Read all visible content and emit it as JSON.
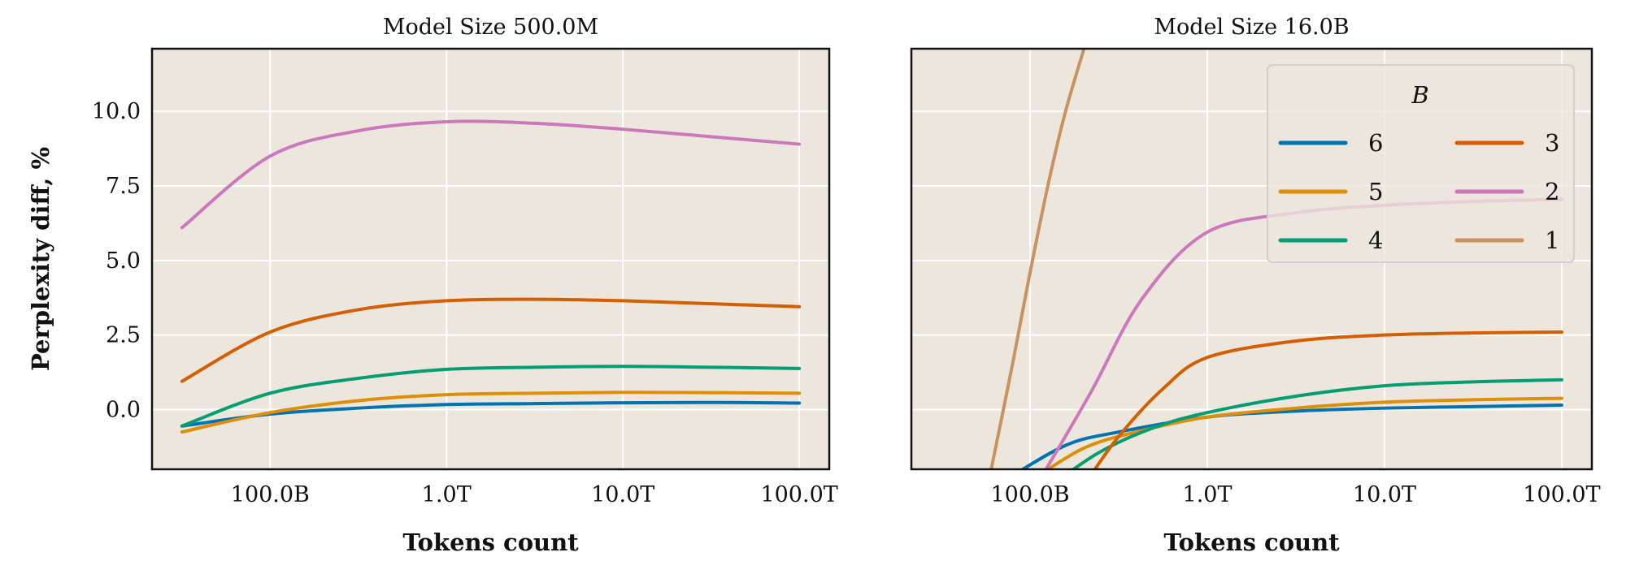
{
  "chart_data": [
    {
      "type": "line",
      "title": "Model Size 500.0M",
      "xlabel": "Tokens count",
      "ylabel": "Perplexity diff, %",
      "xscale": "log10",
      "xlim": [
        10.33,
        14.17
      ],
      "ylim": [
        -2.0,
        12.1
      ],
      "xticks": [
        11,
        12,
        13,
        14
      ],
      "xtick_labels": [
        "100.0B",
        "1.0T",
        "10.0T",
        "100.0T"
      ],
      "yticks": [
        0,
        2.5,
        5,
        7.5,
        10
      ],
      "ytick_labels": [
        "0.0",
        "2.5",
        "5.0",
        "7.5",
        "10.0"
      ],
      "grid": true,
      "series": [
        {
          "name": "6",
          "color": "#0173b2",
          "x": [
            10.5,
            11,
            11.5,
            12,
            12.5,
            13,
            13.5,
            14
          ],
          "y": [
            -0.55,
            -0.15,
            0.05,
            0.17,
            0.2,
            0.23,
            0.24,
            0.22
          ]
        },
        {
          "name": "5",
          "color": "#de8f05",
          "x": [
            10.5,
            11,
            11.5,
            12,
            12.5,
            13,
            13.5,
            14
          ],
          "y": [
            -0.75,
            -0.1,
            0.3,
            0.5,
            0.55,
            0.58,
            0.57,
            0.55
          ]
        },
        {
          "name": "4",
          "color": "#029e73",
          "x": [
            10.5,
            11,
            11.5,
            12,
            12.5,
            13,
            13.5,
            14
          ],
          "y": [
            -0.55,
            0.55,
            1.05,
            1.35,
            1.42,
            1.45,
            1.42,
            1.38
          ]
        },
        {
          "name": "3",
          "color": "#d55e00",
          "x": [
            10.5,
            11,
            11.5,
            12,
            12.5,
            13,
            13.5,
            14
          ],
          "y": [
            0.95,
            2.6,
            3.35,
            3.65,
            3.7,
            3.65,
            3.55,
            3.45
          ]
        },
        {
          "name": "2",
          "color": "#cc78bc",
          "x": [
            10.5,
            11,
            11.5,
            12,
            12.5,
            13,
            13.5,
            14
          ],
          "y": [
            6.1,
            8.5,
            9.35,
            9.65,
            9.6,
            9.4,
            9.15,
            8.9
          ]
        }
      ]
    },
    {
      "type": "line",
      "title": "Model Size 16.0B",
      "xlabel": "Tokens count",
      "xscale": "log10",
      "xlim": [
        10.33,
        14.17
      ],
      "ylim": [
        -2.0,
        12.1
      ],
      "xticks": [
        11,
        12,
        13,
        14
      ],
      "xtick_labels": [
        "100.0B",
        "1.0T",
        "10.0T",
        "100.0T"
      ],
      "yticks": [
        0,
        2.5,
        5,
        7.5,
        10
      ],
      "grid": true,
      "legend": {
        "title": "B",
        "placement": "top-right",
        "columns": 2
      },
      "series": [
        {
          "name": "6",
          "color": "#0173b2",
          "x": [
            10.85,
            11.2,
            11.5,
            12,
            12.5,
            13,
            13.5,
            14
          ],
          "y": [
            -2.4,
            -1.2,
            -0.75,
            -0.25,
            -0.05,
            0.05,
            0.1,
            0.15
          ]
        },
        {
          "name": "5",
          "color": "#de8f05",
          "x": [
            11.0,
            11.3,
            11.6,
            12,
            12.5,
            13,
            13.5,
            14
          ],
          "y": [
            -2.4,
            -1.3,
            -0.75,
            -0.25,
            0.05,
            0.25,
            0.33,
            0.38
          ]
        },
        {
          "name": "4",
          "color": "#029e73",
          "x": [
            11.15,
            11.4,
            11.7,
            12,
            12.5,
            13,
            13.5,
            14
          ],
          "y": [
            -2.4,
            -1.4,
            -0.6,
            -0.1,
            0.45,
            0.8,
            0.93,
            1.0
          ]
        },
        {
          "name": "3",
          "color": "#d55e00",
          "x": [
            11.32,
            11.5,
            11.75,
            12,
            12.5,
            13,
            13.5,
            14
          ],
          "y": [
            -2.4,
            -0.9,
            0.7,
            1.75,
            2.3,
            2.5,
            2.57,
            2.6
          ]
        },
        {
          "name": "2",
          "color": "#cc78bc",
          "x": [
            11.05,
            11.34,
            11.63,
            12,
            12.5,
            13,
            13.5,
            14
          ],
          "y": [
            -2.4,
            0.55,
            3.7,
            5.95,
            6.6,
            6.85,
            6.98,
            7.05
          ]
        },
        {
          "name": "1",
          "color": "#ca9161",
          "x": [
            10.76,
            10.9,
            11.0,
            11.1,
            11.2,
            11.33
          ],
          "y": [
            -2.6,
            1.5,
            4.6,
            7.5,
            10.0,
            12.6
          ]
        }
      ]
    }
  ],
  "legend_items": [
    {
      "label": "6",
      "color": "#0173b2"
    },
    {
      "label": "5",
      "color": "#de8f05"
    },
    {
      "label": "4",
      "color": "#029e73"
    },
    {
      "label": "3",
      "color": "#d55e00"
    },
    {
      "label": "2",
      "color": "#cc78bc"
    },
    {
      "label": "1",
      "color": "#ca9161"
    }
  ],
  "colors": {
    "plot_background": "#ece6dc",
    "grid": "#ffffff"
  }
}
